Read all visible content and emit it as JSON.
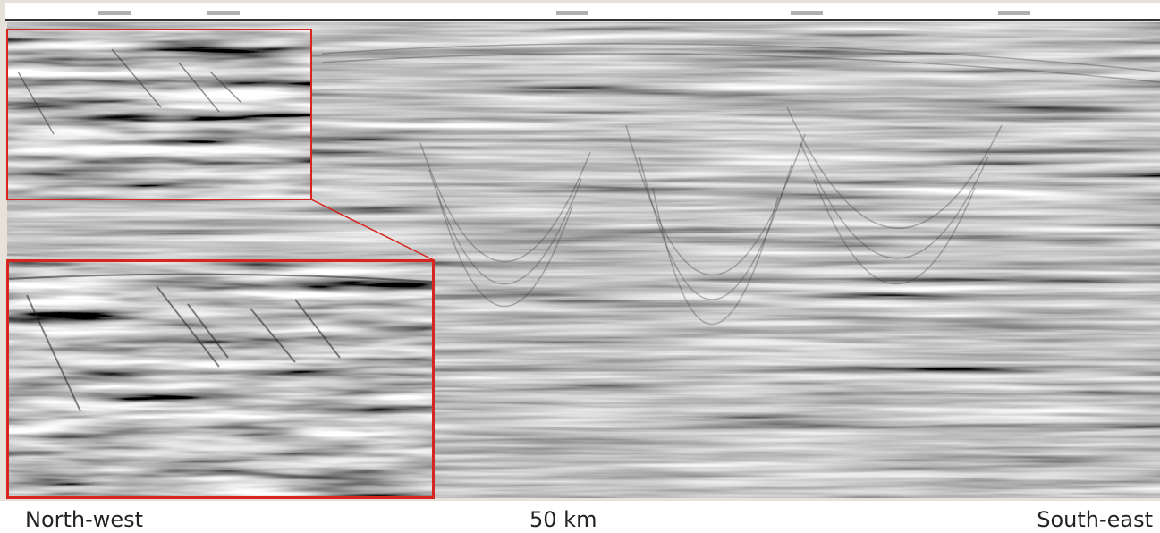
{
  "labels": {
    "left": "North-west",
    "center": "50 km",
    "right": "South-east"
  }
}
